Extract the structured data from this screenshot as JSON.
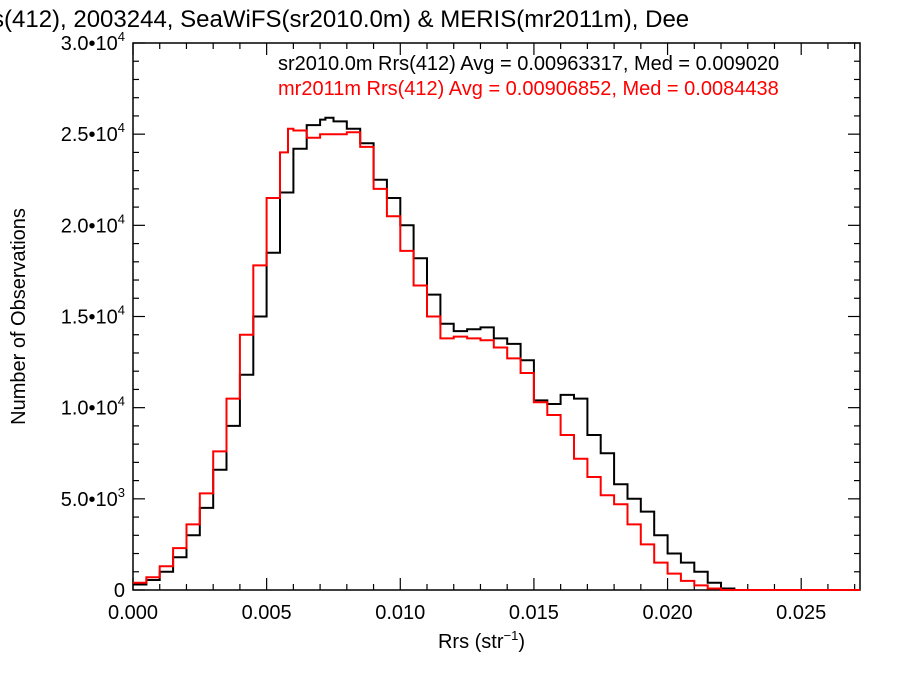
{
  "title": "s(412), 2003244, SeaWiFS(sr2010.0m) & MERIS(mr2011m), Dee",
  "colors": {
    "series1": "#000000",
    "series2": "#ff0000"
  },
  "chart_data": {
    "type": "line",
    "xlabel": "Rrs (str",
    "xlabel_sup": "−1",
    "xlabel_close": ")",
    "ylabel": "Number of Observations",
    "xlim": [
      0,
      0.0272
    ],
    "ylim": [
      0,
      30000
    ],
    "x_ticks": [
      {
        "value": 0.0,
        "label": "0.000"
      },
      {
        "value": 0.005,
        "label": "0.005"
      },
      {
        "value": 0.01,
        "label": "0.010"
      },
      {
        "value": 0.015,
        "label": "0.015"
      },
      {
        "value": 0.02,
        "label": "0.020"
      },
      {
        "value": 0.025,
        "label": "0.025"
      }
    ],
    "y_ticks": [
      {
        "value": 0,
        "label": "0"
      },
      {
        "value": 5000,
        "label": "5.0•10",
        "sup": "3"
      },
      {
        "value": 10000,
        "label": "1.0•10",
        "sup": "4"
      },
      {
        "value": 15000,
        "label": "1.5•10",
        "sup": "4"
      },
      {
        "value": 20000,
        "label": "2.0•10",
        "sup": "4"
      },
      {
        "value": 25000,
        "label": "2.5•10",
        "sup": "4"
      },
      {
        "value": 30000,
        "label": "3.0•10",
        "sup": "4"
      }
    ],
    "series": [
      {
        "name": "sr2010.0m",
        "legend": "sr2010.0m Rrs(412) Avg = 0.00963317, Med = 0.009020",
        "color": "#000000",
        "x": [
          0.0,
          0.0005,
          0.001,
          0.0015,
          0.002,
          0.0025,
          0.003,
          0.0035,
          0.004,
          0.0045,
          0.005,
          0.0055,
          0.006,
          0.0065,
          0.007,
          0.0072,
          0.0075,
          0.008,
          0.0085,
          0.009,
          0.0095,
          0.01,
          0.0105,
          0.011,
          0.0115,
          0.012,
          0.0125,
          0.013,
          0.0135,
          0.014,
          0.0145,
          0.015,
          0.0155,
          0.016,
          0.0165,
          0.017,
          0.0175,
          0.018,
          0.0185,
          0.019,
          0.0195,
          0.02,
          0.0205,
          0.021,
          0.0215,
          0.022,
          0.0225,
          0.023,
          0.025,
          0.0272
        ],
        "values": [
          300,
          550,
          1000,
          1800,
          3000,
          4500,
          6600,
          9000,
          11800,
          15000,
          18500,
          21800,
          24200,
          25500,
          25800,
          25900,
          25700,
          25300,
          24500,
          22500,
          21500,
          20000,
          18200,
          16200,
          14600,
          14200,
          14300,
          14400,
          13800,
          13500,
          12600,
          10400,
          10200,
          10700,
          10500,
          8500,
          7500,
          5800,
          5000,
          4300,
          3000,
          2000,
          1500,
          1000,
          400,
          80,
          0,
          0,
          0,
          0
        ]
      },
      {
        "name": "mr2011m",
        "legend": "mr2011m Rrs(412) Avg = 0.00906852, Med = 0.0084438",
        "color": "#ff0000",
        "x": [
          0.0,
          0.0005,
          0.001,
          0.0015,
          0.002,
          0.0025,
          0.003,
          0.0035,
          0.004,
          0.0045,
          0.005,
          0.0055,
          0.0058,
          0.006,
          0.0065,
          0.007,
          0.0075,
          0.008,
          0.0085,
          0.009,
          0.0095,
          0.01,
          0.0105,
          0.011,
          0.0115,
          0.012,
          0.0125,
          0.013,
          0.0135,
          0.014,
          0.0145,
          0.015,
          0.0155,
          0.016,
          0.0165,
          0.017,
          0.0175,
          0.018,
          0.0185,
          0.019,
          0.0195,
          0.02,
          0.0205,
          0.021,
          0.0215,
          0.022,
          0.0225,
          0.025,
          0.0272
        ],
        "values": [
          400,
          700,
          1300,
          2300,
          3600,
          5300,
          7600,
          10500,
          14000,
          17800,
          21500,
          24000,
          25300,
          25200,
          24800,
          25000,
          25000,
          25100,
          24300,
          22000,
          20500,
          18600,
          16700,
          15000,
          13800,
          13900,
          13800,
          13700,
          13300,
          12700,
          11900,
          10300,
          9600,
          8500,
          7200,
          6200,
          5200,
          4700,
          3600,
          2500,
          1500,
          900,
          500,
          250,
          80,
          0,
          0,
          0,
          0
        ]
      }
    ],
    "grid": false,
    "legend_position": "top-right"
  }
}
